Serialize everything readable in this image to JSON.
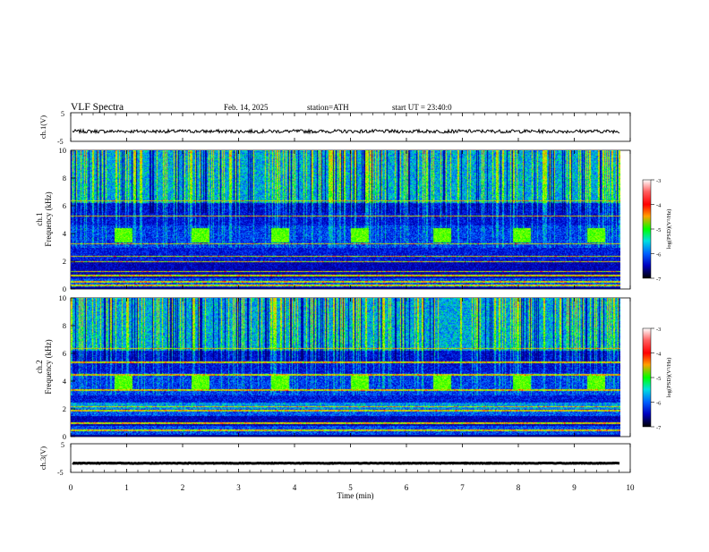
{
  "header": {
    "title": "VLF Spectra",
    "date": "Feb. 14, 2025",
    "station": "station=ATH",
    "start": "start UT = 23:40:0"
  },
  "colorbar": {
    "label": "log(PSD)(V²/Hz)",
    "ticks": [
      "-3",
      "-4",
      "-5",
      "-6",
      "-7"
    ]
  },
  "chart_data": [
    {
      "type": "line",
      "name": "ch1-waveform",
      "ylabel": "ch.1(V)",
      "ytick_labels": [
        "5",
        "-5"
      ],
      "ylim": [
        -5,
        5
      ],
      "xlim": [
        0,
        10
      ],
      "summary": {
        "baseline_V": -1.5,
        "noise_V": 0.6
      }
    },
    {
      "type": "heatmap",
      "name": "ch1-spectrogram",
      "ylabel": "Frequency (kHz)",
      "channel_label": "ch.1",
      "ytick_labels": [
        "0",
        "2",
        "4",
        "6",
        "8",
        "10"
      ],
      "ylim": [
        0,
        10
      ],
      "xlim": [
        0,
        10
      ],
      "color_range_logPSD": [
        -7,
        -3
      ],
      "bursts_4kHz_min": [
        0.95,
        2.35,
        3.8,
        5.25,
        6.75,
        8.2,
        9.55
      ],
      "horizontal_lines_kHz": [
        0.3,
        0.55,
        1.0,
        1.3,
        2.0,
        2.4,
        3.3,
        5.3,
        6.4
      ]
    },
    {
      "type": "heatmap",
      "name": "ch2-spectrogram",
      "ylabel": "Frequency (kHz)",
      "channel_label": "ch.2",
      "ytick_labels": [
        "0",
        "2",
        "4",
        "6",
        "8",
        "10"
      ],
      "ylim": [
        0,
        10
      ],
      "xlim": [
        0,
        10
      ],
      "color_range_logPSD": [
        -7,
        -3
      ],
      "bursts_4kHz_min": [
        0.95,
        2.35,
        3.8,
        5.25,
        6.75,
        8.2,
        9.55
      ],
      "horizontal_lines_kHz": [
        0.5,
        1.0,
        1.9,
        2.2,
        3.4,
        4.5,
        5.4,
        6.4
      ]
    },
    {
      "type": "line",
      "name": "ch3-waveform",
      "ylabel": "ch.3(V)",
      "ytick_labels": [
        "5",
        "-5"
      ],
      "ylim": [
        -5,
        5
      ],
      "xlim": [
        0,
        10
      ],
      "summary": {
        "baseline_V": -1.8,
        "noise_V": 0.1
      }
    }
  ],
  "xaxis": {
    "label": "Time (min)",
    "ticks": [
      "0",
      "1",
      "2",
      "3",
      "4",
      "5",
      "6",
      "7",
      "8",
      "9",
      "10"
    ]
  }
}
